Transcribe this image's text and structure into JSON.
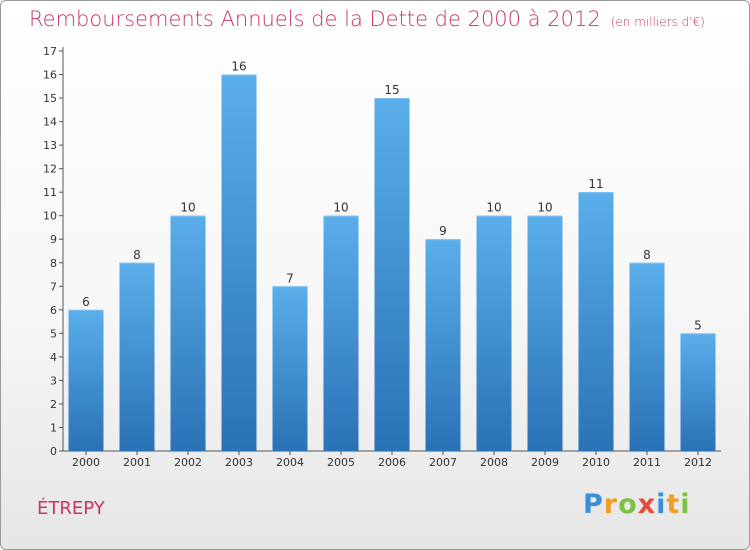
{
  "chart_data": {
    "type": "bar",
    "title": "Remboursements Annuels de la Dette de 2000 à 2012",
    "unit_label": "(en milliers d'€)",
    "categories": [
      "2000",
      "2001",
      "2002",
      "2003",
      "2004",
      "2005",
      "2006",
      "2007",
      "2008",
      "2009",
      "2010",
      "2011",
      "2012"
    ],
    "values": [
      6,
      8,
      10,
      16,
      7,
      10,
      15,
      9,
      10,
      10,
      11,
      8,
      5
    ],
    "xlabel": "",
    "ylabel": "",
    "ylim": [
      0,
      17
    ],
    "yticks": [
      0,
      1,
      2,
      3,
      4,
      5,
      6,
      7,
      8,
      9,
      10,
      11,
      12,
      13,
      14,
      15,
      16,
      17
    ],
    "grid": false,
    "colors": {
      "bar_top": "#5aaeea",
      "bar_bottom": "#2a72b6",
      "title": "#c8346a"
    }
  },
  "commune": "ÉTREPY",
  "logo": {
    "text": "Proxiti",
    "letters": [
      {
        "char": "P",
        "color": "#3b8fd6"
      },
      {
        "char": "r",
        "color": "#f0a020"
      },
      {
        "char": "o",
        "color": "#7cc242"
      },
      {
        "char": "x",
        "color": "#e84a3a"
      },
      {
        "char": "i",
        "color": "#3b8fd6"
      },
      {
        "char": "t",
        "color": "#f0a020"
      },
      {
        "char": "i",
        "color": "#7cc242"
      }
    ]
  }
}
